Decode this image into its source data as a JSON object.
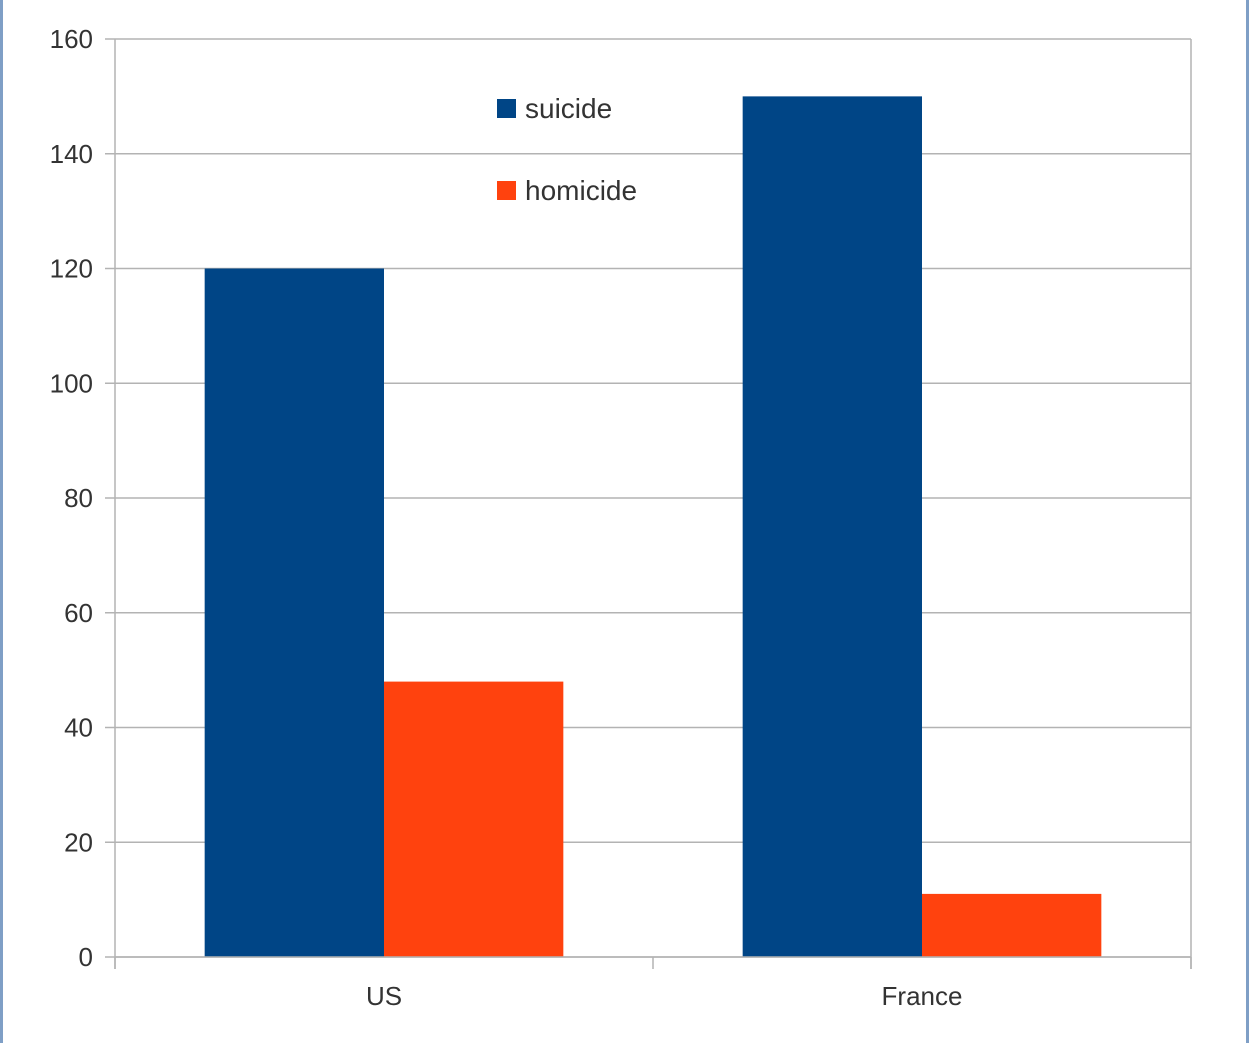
{
  "chart_data": {
    "type": "bar",
    "categories": [
      "US",
      "France"
    ],
    "series": [
      {
        "name": "suicide",
        "values": [
          120,
          150
        ],
        "color": "#004586"
      },
      {
        "name": "homicide",
        "values": [
          48,
          11
        ],
        "color": "#ff420e"
      }
    ],
    "ylim": [
      0,
      160
    ],
    "yticks": [
      "0",
      "20",
      "40",
      "60",
      "80",
      "100",
      "120",
      "140",
      "160"
    ],
    "grid": true,
    "legend": "top-center"
  }
}
